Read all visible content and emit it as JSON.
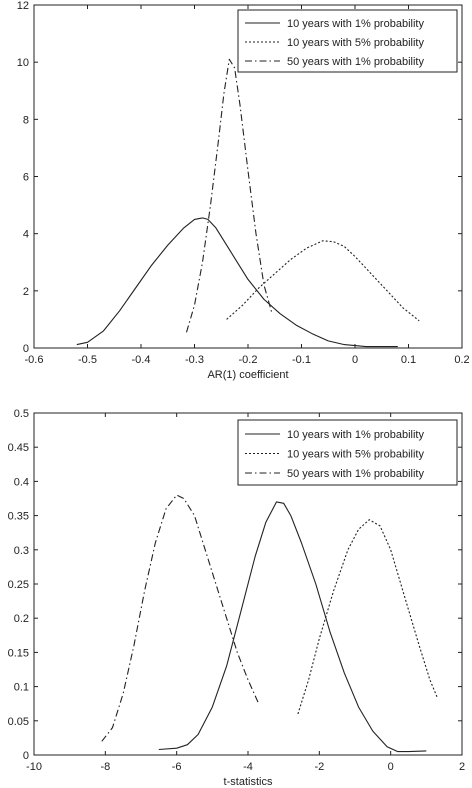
{
  "chart_data": [
    {
      "type": "line",
      "xlabel": "AR(1) coefficient",
      "ylabel": "",
      "xlim": [
        -0.6,
        0.2
      ],
      "ylim": [
        0,
        12
      ],
      "xticks": [
        -0.6,
        -0.5,
        -0.4,
        -0.3,
        -0.2,
        -0.1,
        0,
        0.1,
        0.2
      ],
      "yticks": [
        0,
        2,
        4,
        6,
        8,
        10,
        12
      ],
      "xtick_labels": [
        "-0.6",
        "-0.5",
        "-0.4",
        "-0.3",
        "-0.2",
        "-0.1",
        "0",
        "0.1",
        "0.2"
      ],
      "ytick_labels": [
        "0",
        "2",
        "4",
        "6",
        "8",
        "10",
        "12"
      ],
      "legend_position": "top-right",
      "series": [
        {
          "name": "10 years with 1% probability",
          "style": "solid",
          "x": [
            -0.52,
            -0.5,
            -0.47,
            -0.44,
            -0.41,
            -0.38,
            -0.35,
            -0.32,
            -0.3,
            -0.285,
            -0.275,
            -0.26,
            -0.24,
            -0.22,
            -0.2,
            -0.17,
            -0.14,
            -0.11,
            -0.08,
            -0.05,
            -0.02,
            0.02,
            0.08
          ],
          "y": [
            0.12,
            0.2,
            0.6,
            1.3,
            2.1,
            2.9,
            3.6,
            4.2,
            4.5,
            4.55,
            4.5,
            4.2,
            3.6,
            3.0,
            2.4,
            1.7,
            1.2,
            0.8,
            0.5,
            0.25,
            0.12,
            0.05,
            0.05
          ]
        },
        {
          "name": "10 years with 5% probability",
          "style": "dotted",
          "x": [
            -0.24,
            -0.21,
            -0.18,
            -0.15,
            -0.12,
            -0.09,
            -0.06,
            -0.04,
            -0.02,
            0,
            0.03,
            0.06,
            0.09,
            0.12
          ],
          "y": [
            1.0,
            1.5,
            2.1,
            2.6,
            3.1,
            3.5,
            3.75,
            3.72,
            3.55,
            3.2,
            2.6,
            2.0,
            1.4,
            0.95
          ]
        },
        {
          "name": "50 years with 1% probability",
          "style": "dash-dot",
          "x": [
            -0.315,
            -0.3,
            -0.285,
            -0.27,
            -0.255,
            -0.245,
            -0.235,
            -0.225,
            -0.215,
            -0.2,
            -0.185,
            -0.17,
            -0.155
          ],
          "y": [
            0.55,
            1.5,
            3.0,
            5.0,
            7.3,
            8.9,
            10.1,
            9.8,
            8.5,
            6.2,
            4.0,
            2.2,
            1.2
          ]
        }
      ]
    },
    {
      "type": "line",
      "xlabel": "t-statistics",
      "ylabel": "",
      "xlim": [
        -10,
        2
      ],
      "ylim": [
        0,
        0.5
      ],
      "xticks": [
        -10,
        -8,
        -6,
        -4,
        -2,
        0,
        2
      ],
      "yticks": [
        0,
        0.05,
        0.1,
        0.15,
        0.2,
        0.25,
        0.3,
        0.35,
        0.4,
        0.45,
        0.5
      ],
      "xtick_labels": [
        "-10",
        "-8",
        "-6",
        "-4",
        "-2",
        "0",
        "2"
      ],
      "ytick_labels": [
        "0",
        "0.05",
        "0.1",
        "0.15",
        "0.2",
        "0.25",
        "0.3",
        "0.35",
        "0.4",
        "0.45",
        "0.5"
      ],
      "legend_position": "top-right",
      "series": [
        {
          "name": "10 years with 1% probability",
          "style": "solid",
          "x": [
            -6.5,
            -6.0,
            -5.7,
            -5.4,
            -5.0,
            -4.6,
            -4.2,
            -3.8,
            -3.5,
            -3.2,
            -3.0,
            -2.8,
            -2.5,
            -2.1,
            -1.7,
            -1.3,
            -0.9,
            -0.5,
            -0.1,
            0.2,
            0.5,
            1.0
          ],
          "y": [
            0.008,
            0.01,
            0.015,
            0.03,
            0.07,
            0.13,
            0.21,
            0.29,
            0.34,
            0.37,
            0.368,
            0.35,
            0.31,
            0.25,
            0.18,
            0.12,
            0.07,
            0.035,
            0.012,
            0.005,
            0.005,
            0.006
          ]
        },
        {
          "name": "10 years with 5% probability",
          "style": "dotted",
          "x": [
            -2.6,
            -2.3,
            -2.0,
            -1.6,
            -1.2,
            -0.9,
            -0.6,
            -0.3,
            0,
            0.4,
            0.8,
            1.1,
            1.3
          ],
          "y": [
            0.06,
            0.11,
            0.17,
            0.24,
            0.3,
            0.33,
            0.344,
            0.335,
            0.3,
            0.23,
            0.16,
            0.11,
            0.085
          ]
        },
        {
          "name": "50 years with 1% probability",
          "style": "dash-dot",
          "x": [
            -8.1,
            -7.8,
            -7.5,
            -7.2,
            -6.9,
            -6.6,
            -6.3,
            -6.0,
            -5.8,
            -5.5,
            -5.2,
            -4.9,
            -4.6,
            -4.3,
            -4.0,
            -3.7
          ],
          "y": [
            0.02,
            0.04,
            0.09,
            0.16,
            0.24,
            0.31,
            0.36,
            0.38,
            0.375,
            0.35,
            0.3,
            0.25,
            0.2,
            0.15,
            0.11,
            0.075
          ]
        }
      ]
    }
  ]
}
